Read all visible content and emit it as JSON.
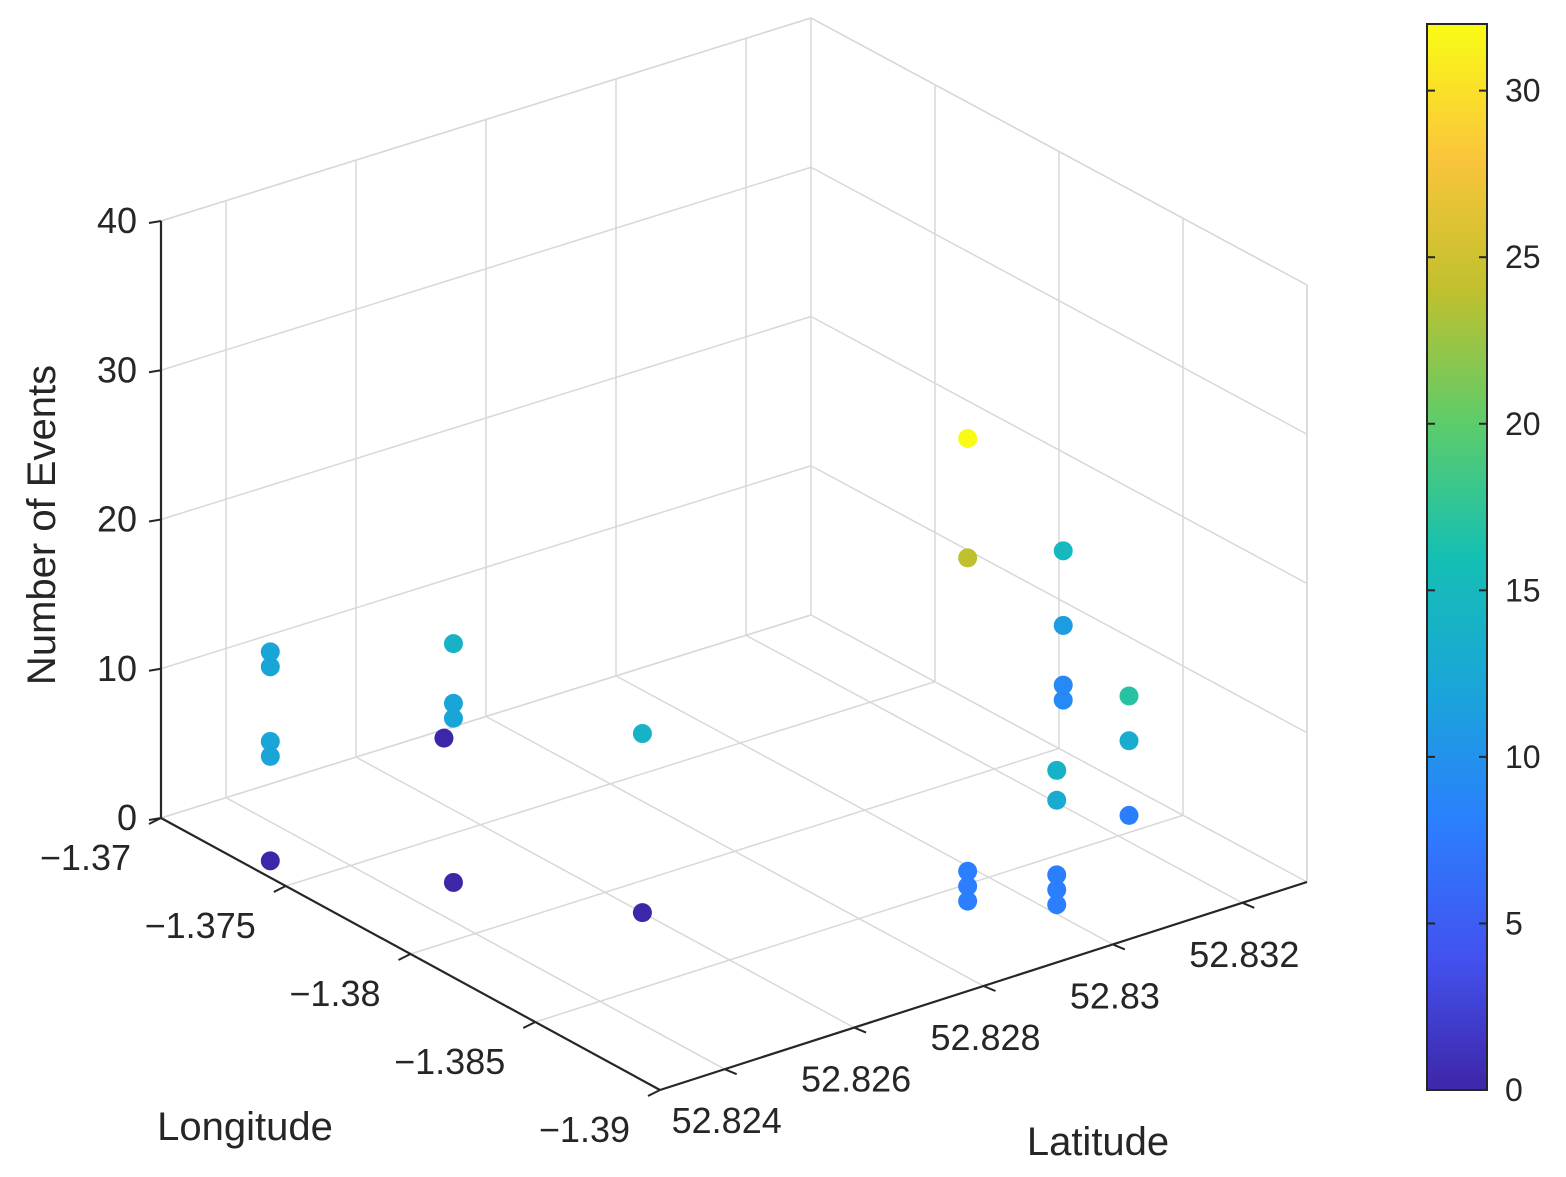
{
  "chart_data": {
    "type": "scatter3d",
    "xlabel": "Latitude",
    "ylabel": "Longitude",
    "zlabel": "Number of Events",
    "xlim": [
      52.823,
      52.833
    ],
    "ylim": [
      -1.37,
      -1.39
    ],
    "zlim": [
      0,
      40
    ],
    "xticks": [
      "52.824",
      "52.826",
      "52.828",
      "52.83",
      "52.832"
    ],
    "yticks": [
      "-1.37",
      "-1.375",
      "-1.38",
      "-1.385",
      "-1.39"
    ],
    "zticks": [
      "0",
      "10",
      "20",
      "30",
      "40"
    ],
    "grid": true,
    "colormap": "parula",
    "colorbar": {
      "range": [
        0,
        32
      ],
      "ticks": [
        "0",
        "5",
        "10",
        "15",
        "20",
        "25",
        "30"
      ],
      "colors": [
        "#3e26a8",
        "#4352f0",
        "#2b7ffe",
        "#1aa5d9",
        "#15bfb3",
        "#5ccc6a",
        "#c0c02e",
        "#fac53b",
        "#f9fb15"
      ]
    },
    "points": [
      {
        "lat": 52.8233,
        "lon": -1.3736,
        "events": 0,
        "color": 0
      },
      {
        "lat": 52.8233,
        "lon": -1.3736,
        "events": 7,
        "color": 12
      },
      {
        "lat": 52.8233,
        "lon": -1.3736,
        "events": 8,
        "color": 12
      },
      {
        "lat": 52.8233,
        "lon": -1.3736,
        "events": 13,
        "color": 12
      },
      {
        "lat": 52.8233,
        "lon": -1.3736,
        "events": 14,
        "color": 12
      },
      {
        "lat": 52.8247,
        "lon": -1.3773,
        "events": 0,
        "color": 0
      },
      {
        "lat": 52.8247,
        "lon": -1.3773,
        "events": 11,
        "color": 12
      },
      {
        "lat": 52.8247,
        "lon": -1.3773,
        "events": 12,
        "color": 12
      },
      {
        "lat": 52.8247,
        "lon": -1.3773,
        "events": 16,
        "color": 14
      },
      {
        "lat": 52.826,
        "lon": -1.3815,
        "events": 0,
        "color": 0
      },
      {
        "lat": 52.826,
        "lon": -1.3815,
        "events": 12,
        "color": 14
      },
      {
        "lat": 52.8272,
        "lon": -1.3704,
        "events": 0,
        "color": 0
      },
      {
        "lat": 52.8291,
        "lon": -1.3865,
        "events": 1,
        "color": 8
      },
      {
        "lat": 52.8291,
        "lon": -1.3865,
        "events": 2,
        "color": 8
      },
      {
        "lat": 52.8291,
        "lon": -1.3865,
        "events": 3,
        "color": 8
      },
      {
        "lat": 52.8291,
        "lon": -1.3865,
        "events": 24,
        "color": 24
      },
      {
        "lat": 52.8291,
        "lon": -1.3865,
        "events": 32,
        "color": 32
      },
      {
        "lat": 52.8299,
        "lon": -1.388,
        "events": 1,
        "color": 8
      },
      {
        "lat": 52.8299,
        "lon": -1.388,
        "events": 2,
        "color": 8
      },
      {
        "lat": 52.8299,
        "lon": -1.388,
        "events": 3,
        "color": 8
      },
      {
        "lat": 52.8299,
        "lon": -1.388,
        "events": 8,
        "color": 13
      },
      {
        "lat": 52.8299,
        "lon": -1.388,
        "events": 10,
        "color": 14
      },
      {
        "lat": 52.8314,
        "lon": -1.387,
        "events": 4,
        "color": 8
      },
      {
        "lat": 52.8314,
        "lon": -1.387,
        "events": 9,
        "color": 13
      },
      {
        "lat": 52.8314,
        "lon": -1.387,
        "events": 12,
        "color": 17
      },
      {
        "lat": 52.8323,
        "lon": -1.382,
        "events": 6,
        "color": 9
      },
      {
        "lat": 52.8323,
        "lon": -1.382,
        "events": 7,
        "color": 9
      },
      {
        "lat": 52.8323,
        "lon": -1.382,
        "events": 11,
        "color": 11
      },
      {
        "lat": 52.8323,
        "lon": -1.382,
        "events": 16,
        "color": 15
      }
    ]
  }
}
